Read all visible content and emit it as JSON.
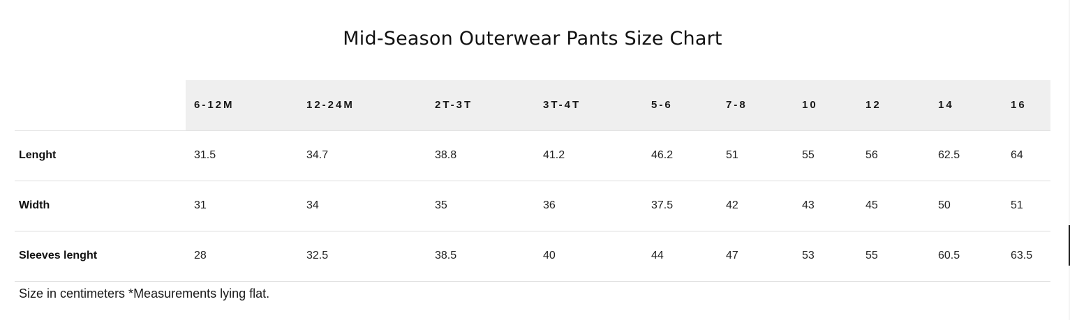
{
  "title": "Mid-Season Outerwear Pants Size Chart",
  "table": {
    "corner": "",
    "sizes": [
      "6-12M",
      "12-24M",
      "2T-3T",
      "3T-4T",
      "5-6",
      "7-8",
      "10",
      "12",
      "14",
      "16"
    ],
    "rows": [
      {
        "label": "Lenght",
        "values": [
          "31.5",
          "34.7",
          "38.8",
          "41.2",
          "46.2",
          "51",
          "55",
          "56",
          "62.5",
          "64"
        ]
      },
      {
        "label": "Width",
        "values": [
          "31",
          "34",
          "35",
          "36",
          "37.5",
          "42",
          "43",
          "45",
          "50",
          "51"
        ]
      },
      {
        "label": "Sleeves lenght",
        "values": [
          "28",
          "32.5",
          "38.5",
          "40",
          "44",
          "47",
          "53",
          "55",
          "60.5",
          "63.5"
        ]
      }
    ]
  },
  "footnote": "Size in centimeters *Measurements lying flat."
}
